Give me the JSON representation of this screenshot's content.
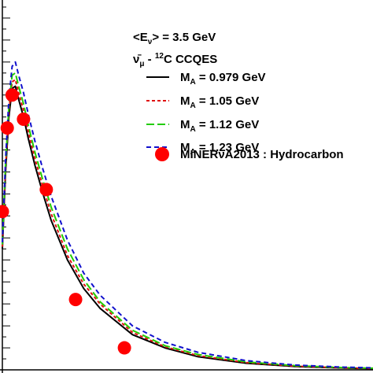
{
  "chart_data": {
    "type": "line",
    "title": "",
    "xlabel": "",
    "ylabel": "",
    "xlim": [
      0.0,
      2.5
    ],
    "ylim": [
      0.0,
      1.7
    ],
    "header": {
      "energy_label": "<E",
      "energy_sub": "ν",
      "energy_value": "> = 3.5 GeV",
      "process_prefix": "ν̄",
      "process_sub": "μ",
      "process_middle": " - ",
      "process_sup": "12",
      "process_suffix": "C CCQES"
    },
    "series": [
      {
        "name": "M",
        "name_sub": "A",
        "name_value": " = 0.979 GeV",
        "color": "#000000",
        "dash": "",
        "x": [
          0.0,
          0.02,
          0.04,
          0.06,
          0.08,
          0.1,
          0.13,
          0.16,
          0.2,
          0.25,
          0.3,
          0.4,
          0.5,
          0.6,
          0.8,
          1.0,
          1.2,
          1.5,
          1.8,
          2.1,
          2.4,
          2.5
        ],
        "y": [
          0.55,
          0.9,
          1.15,
          1.28,
          1.29,
          1.23,
          1.15,
          1.05,
          0.93,
          0.8,
          0.68,
          0.5,
          0.37,
          0.28,
          0.16,
          0.1,
          0.06,
          0.03,
          0.015,
          0.008,
          0.004,
          0.003
        ]
      },
      {
        "name": "M",
        "name_sub": "A",
        "name_value": " = 1.05 GeV",
        "color": "#e01010",
        "dash": "4,3",
        "x": [
          0.0,
          0.02,
          0.04,
          0.06,
          0.08,
          0.1,
          0.13,
          0.16,
          0.2,
          0.25,
          0.3,
          0.4,
          0.5,
          0.6,
          0.8,
          1.0,
          1.2,
          1.5,
          1.8,
          2.1,
          2.4,
          2.5
        ],
        "y": [
          0.56,
          0.92,
          1.18,
          1.31,
          1.32,
          1.26,
          1.18,
          1.08,
          0.96,
          0.83,
          0.71,
          0.52,
          0.39,
          0.3,
          0.17,
          0.105,
          0.065,
          0.033,
          0.017,
          0.009,
          0.005,
          0.004
        ]
      },
      {
        "name": "M",
        "name_sub": "A",
        "name_value": " = 1.12 GeV",
        "color": "#22cc00",
        "dash": "10,4",
        "x": [
          0.0,
          0.02,
          0.04,
          0.06,
          0.08,
          0.1,
          0.13,
          0.16,
          0.2,
          0.25,
          0.3,
          0.4,
          0.5,
          0.6,
          0.8,
          1.0,
          1.2,
          1.5,
          1.8,
          2.1,
          2.4,
          2.5
        ],
        "y": [
          0.57,
          0.94,
          1.2,
          1.34,
          1.35,
          1.29,
          1.21,
          1.11,
          0.99,
          0.86,
          0.74,
          0.55,
          0.41,
          0.31,
          0.18,
          0.11,
          0.07,
          0.036,
          0.019,
          0.01,
          0.006,
          0.005
        ]
      },
      {
        "name": "M",
        "name_sub": "A",
        "name_value": " = 1.23 GeV",
        "color": "#1010cc",
        "dash": "6,4",
        "x": [
          0.0,
          0.02,
          0.04,
          0.06,
          0.08,
          0.1,
          0.13,
          0.16,
          0.2,
          0.25,
          0.3,
          0.4,
          0.5,
          0.6,
          0.8,
          1.0,
          1.2,
          1.5,
          1.8,
          2.1,
          2.4,
          2.5
        ],
        "y": [
          0.58,
          0.96,
          1.23,
          1.38,
          1.4,
          1.34,
          1.26,
          1.16,
          1.04,
          0.91,
          0.79,
          0.59,
          0.44,
          0.34,
          0.2,
          0.125,
          0.08,
          0.042,
          0.022,
          0.012,
          0.007,
          0.006
        ]
      }
    ],
    "points": {
      "name": "MINERνA2013 : Hydrocarbon",
      "color": "#ff0000",
      "x": [
        0.0,
        0.03,
        0.06,
        0.13,
        0.27,
        0.45,
        0.75
      ],
      "y": [
        0.72,
        1.1,
        1.25,
        1.14,
        0.82,
        0.32,
        0.1
      ]
    },
    "grid": false,
    "legend_position": "top-right"
  }
}
